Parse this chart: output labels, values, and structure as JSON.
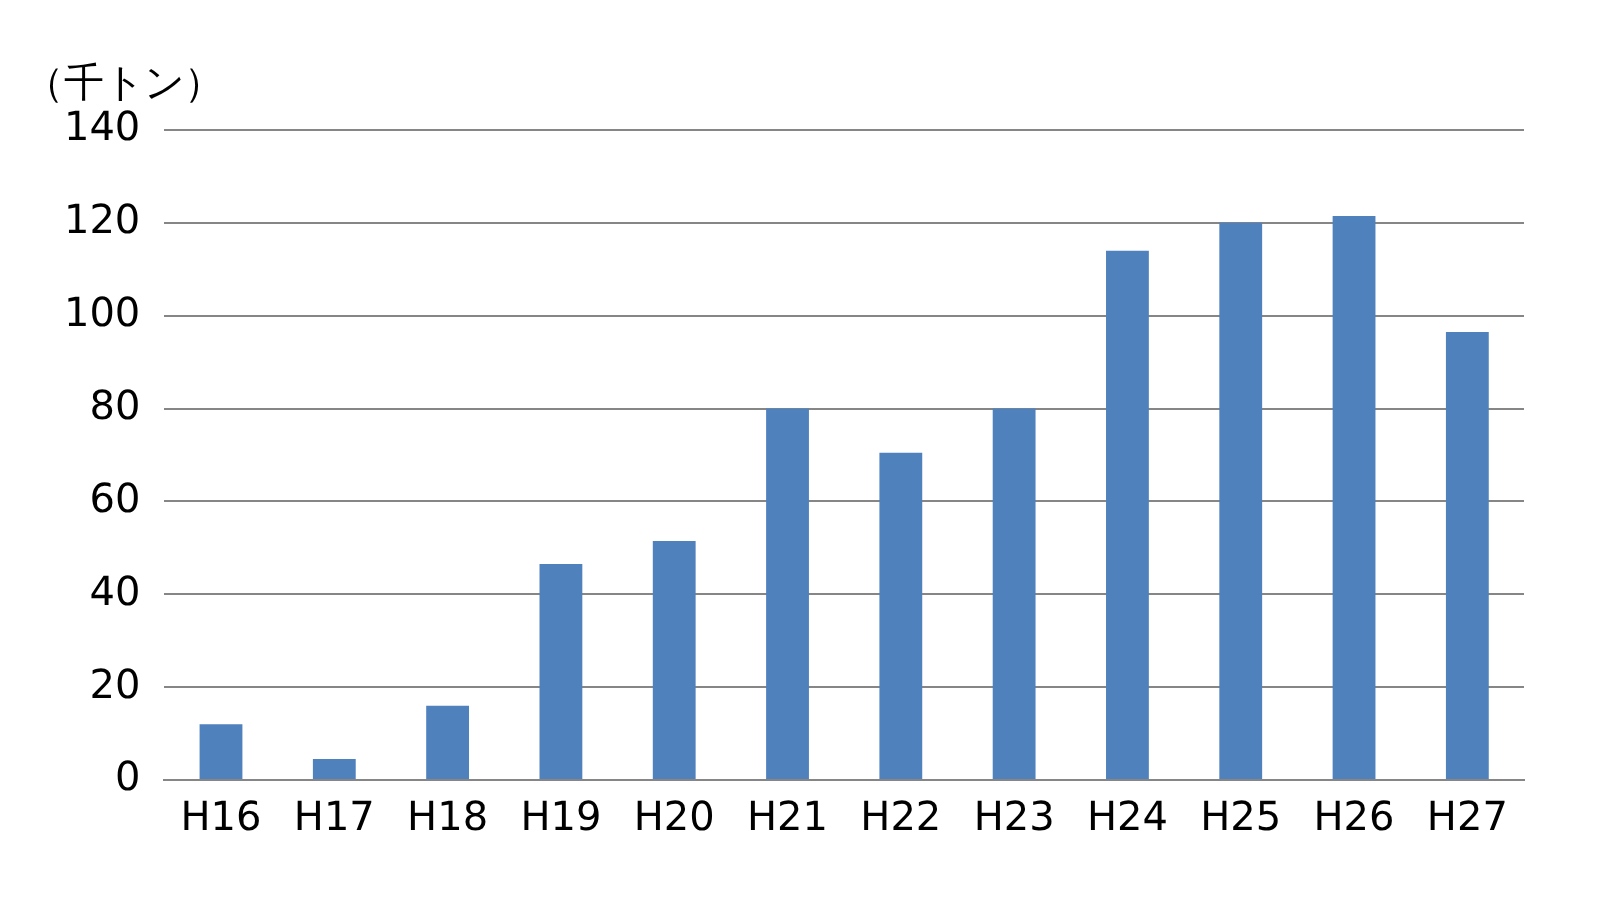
{
  "chart_data": {
    "type": "bar",
    "ylabel": "（千トン）",
    "categories": [
      "H16",
      "H17",
      "H18",
      "H19",
      "H20",
      "H21",
      "H22",
      "H23",
      "H24",
      "H25",
      "H26",
      "H27"
    ],
    "values": [
      12,
      4.5,
      16,
      46.5,
      51.5,
      80,
      70.5,
      80,
      114,
      120,
      121.5,
      96.5
    ],
    "color": "#4f81bd",
    "ylim": [
      0,
      140
    ],
    "yticks": [
      0,
      20,
      40,
      60,
      80,
      100,
      120,
      140
    ],
    "grid": "y"
  }
}
